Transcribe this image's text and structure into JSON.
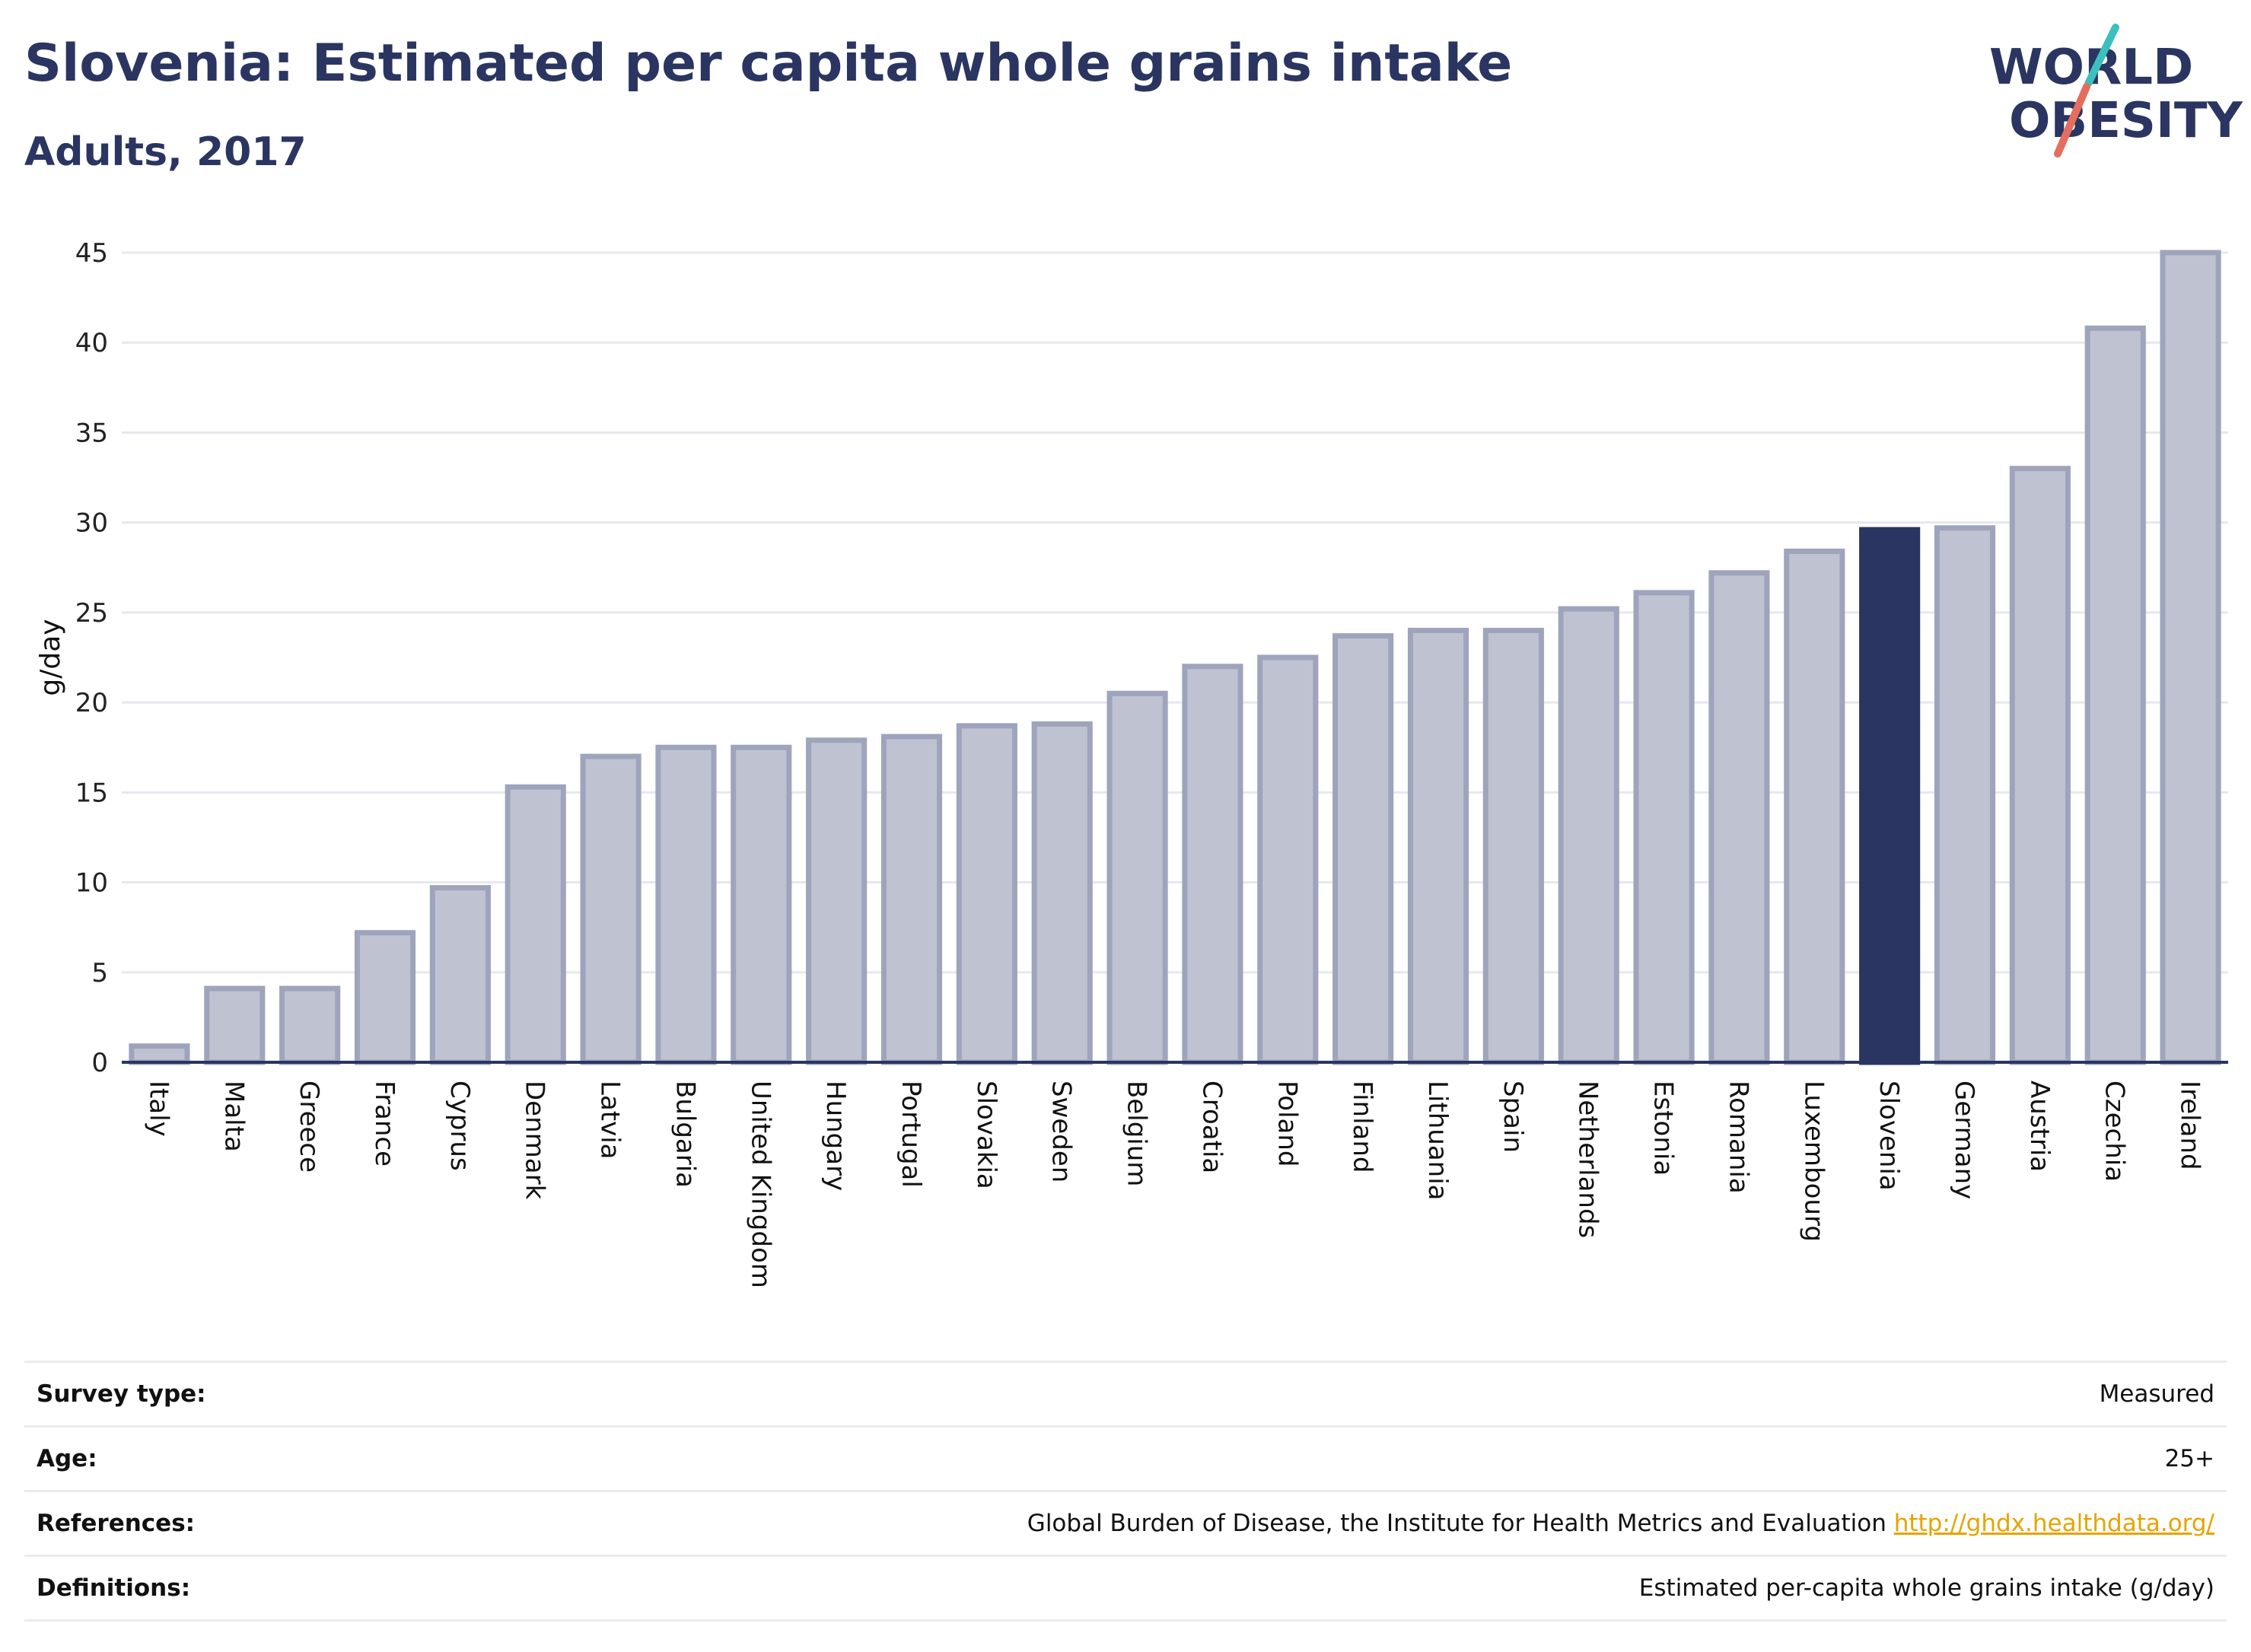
{
  "header": {
    "title": "Slovenia: Estimated per capita whole grains intake",
    "subtitle": "Adults, 2017"
  },
  "logo": {
    "line1": "WORLD",
    "line2": "OBESITY",
    "icon": "world-obesity-logo"
  },
  "colors": {
    "bar": "#bfc3d1",
    "bar_border": "#9ea4bc",
    "highlight": "#2a3561",
    "title": "#2a3561",
    "link": "#e6a400",
    "grid": "#e6e8ee"
  },
  "chart_data": {
    "type": "bar",
    "categories": [
      "Italy",
      "Malta",
      "Greece",
      "France",
      "Cyprus",
      "Denmark",
      "Latvia",
      "Bulgaria",
      "United Kingdom",
      "Hungary",
      "Portugal",
      "Slovakia",
      "Sweden",
      "Belgium",
      "Croatia",
      "Poland",
      "Finland",
      "Lithuania",
      "Spain",
      "Netherlands",
      "Estonia",
      "Romania",
      "Luxembourg",
      "Slovenia",
      "Germany",
      "Austria",
      "Czechia",
      "Ireland"
    ],
    "values": [
      0.9,
      4.1,
      4.1,
      7.2,
      9.7,
      15.3,
      17.0,
      17.5,
      17.5,
      17.9,
      18.1,
      18.7,
      18.8,
      20.5,
      22.0,
      22.5,
      23.7,
      24.0,
      24.0,
      25.2,
      26.1,
      27.2,
      28.4,
      29.6,
      29.7,
      33.0,
      40.8,
      45.0
    ],
    "highlight": "Slovenia",
    "ylabel": "g/day",
    "xlabel": "",
    "ylim": [
      0,
      45
    ],
    "yticks": [
      0,
      5,
      10,
      15,
      20,
      25,
      30,
      35,
      40,
      45
    ],
    "grid": true
  },
  "info": {
    "survey_type_label": "Survey type:",
    "survey_type_value": "Measured",
    "age_label": "Age:",
    "age_value": "25+",
    "references_label": "References:",
    "references_text": "Global Burden of Disease, the Institute for Health Metrics and Evaluation",
    "references_link": "http://ghdx.healthdata.org/",
    "definitions_label": "Definitions:",
    "definitions_value": "Estimated per-capita whole grains intake (g/day)"
  }
}
